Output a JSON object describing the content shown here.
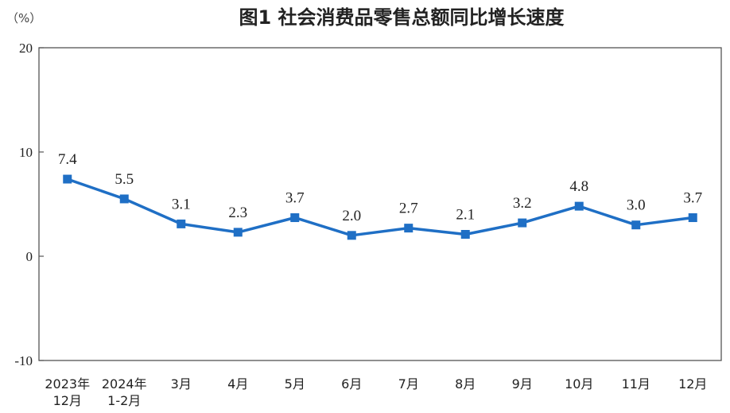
{
  "chart_data": {
    "type": "line",
    "title": "图1  社会消费品零售总额同比增长速度",
    "unit": "（%）",
    "xlabel": "",
    "ylabel": "",
    "ylim": [
      -10,
      20
    ],
    "yticks": [
      "20",
      "10",
      "0",
      "-10"
    ],
    "ytick_values": [
      20,
      10,
      0,
      -10
    ],
    "categories": [
      [
        "2023年",
        "12月"
      ],
      [
        "2024年",
        "1-2月"
      ],
      [
        "3月"
      ],
      [
        "4月"
      ],
      [
        "5月"
      ],
      [
        "6月"
      ],
      [
        "7月"
      ],
      [
        "8月"
      ],
      [
        "9月"
      ],
      [
        "10月"
      ],
      [
        "11月"
      ],
      [
        "12月"
      ]
    ],
    "series": [
      {
        "values": [
          7.4,
          5.5,
          3.1,
          2.3,
          3.7,
          2.0,
          2.7,
          2.1,
          3.2,
          4.8,
          3.0,
          3.7
        ],
        "labels": [
          "7.4",
          "5.5",
          "3.1",
          "2.3",
          "3.7",
          "2.0",
          "2.7",
          "2.1",
          "3.2",
          "4.8",
          "3.0",
          "3.7"
        ],
        "color": "#1f6fc5"
      }
    ],
    "grid": false,
    "legend": "none"
  }
}
